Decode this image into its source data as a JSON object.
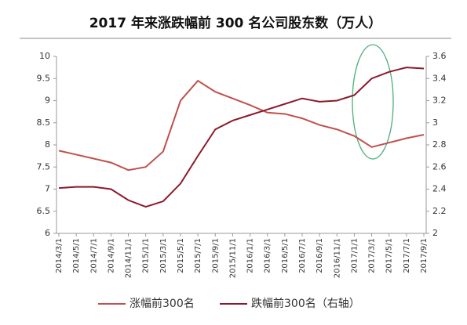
{
  "chart_data": {
    "type": "line",
    "title": "2017 年来涨跌幅前 300 名公司股东数（万人）",
    "categories": [
      "2014/3/1",
      "2014/5/1",
      "2014/7/1",
      "2014/9/1",
      "2014/11/1",
      "2015/1/1",
      "2015/3/1",
      "2015/5/1",
      "2015/7/1",
      "2015/9/1",
      "2015/11/1",
      "2016/1/1",
      "2016/3/1",
      "2016/5/1",
      "2016/7/1",
      "2016/9/1",
      "2016/11/1",
      "2017/1/1",
      "2017/3/1",
      "2017/5/1",
      "2017/7/1",
      "2017/9/1"
    ],
    "series": [
      {
        "name": "涨幅前300名",
        "color": "#c0504d",
        "values": [
          7.87,
          7.78,
          7.69,
          7.6,
          7.43,
          7.5,
          7.85,
          9.0,
          9.45,
          9.2,
          9.05,
          8.9,
          8.73,
          8.7,
          8.6,
          8.45,
          8.35,
          8.2,
          7.95,
          8.05,
          8.15,
          8.23
        ]
      },
      {
        "name": "跌幅前300名（右轴）",
        "color": "#8b1a2b",
        "axis": "y2",
        "values": [
          2.41,
          2.42,
          2.42,
          2.4,
          2.3,
          2.24,
          2.29,
          2.45,
          2.7,
          2.94,
          3.02,
          3.07,
          3.12,
          3.17,
          3.22,
          3.19,
          3.2,
          3.25,
          3.4,
          3.46,
          3.5,
          3.49
        ]
      }
    ],
    "ylim": [
      6,
      10
    ],
    "yticks": [
      6,
      6.5,
      7,
      7.5,
      8,
      8.5,
      9,
      9.5,
      10
    ],
    "y2lim": [
      2,
      3.6
    ],
    "y2ticks": [
      2,
      2.2,
      2.4,
      2.6,
      2.8,
      3,
      3.2,
      3.4,
      3.6
    ],
    "legend": "bottom"
  }
}
